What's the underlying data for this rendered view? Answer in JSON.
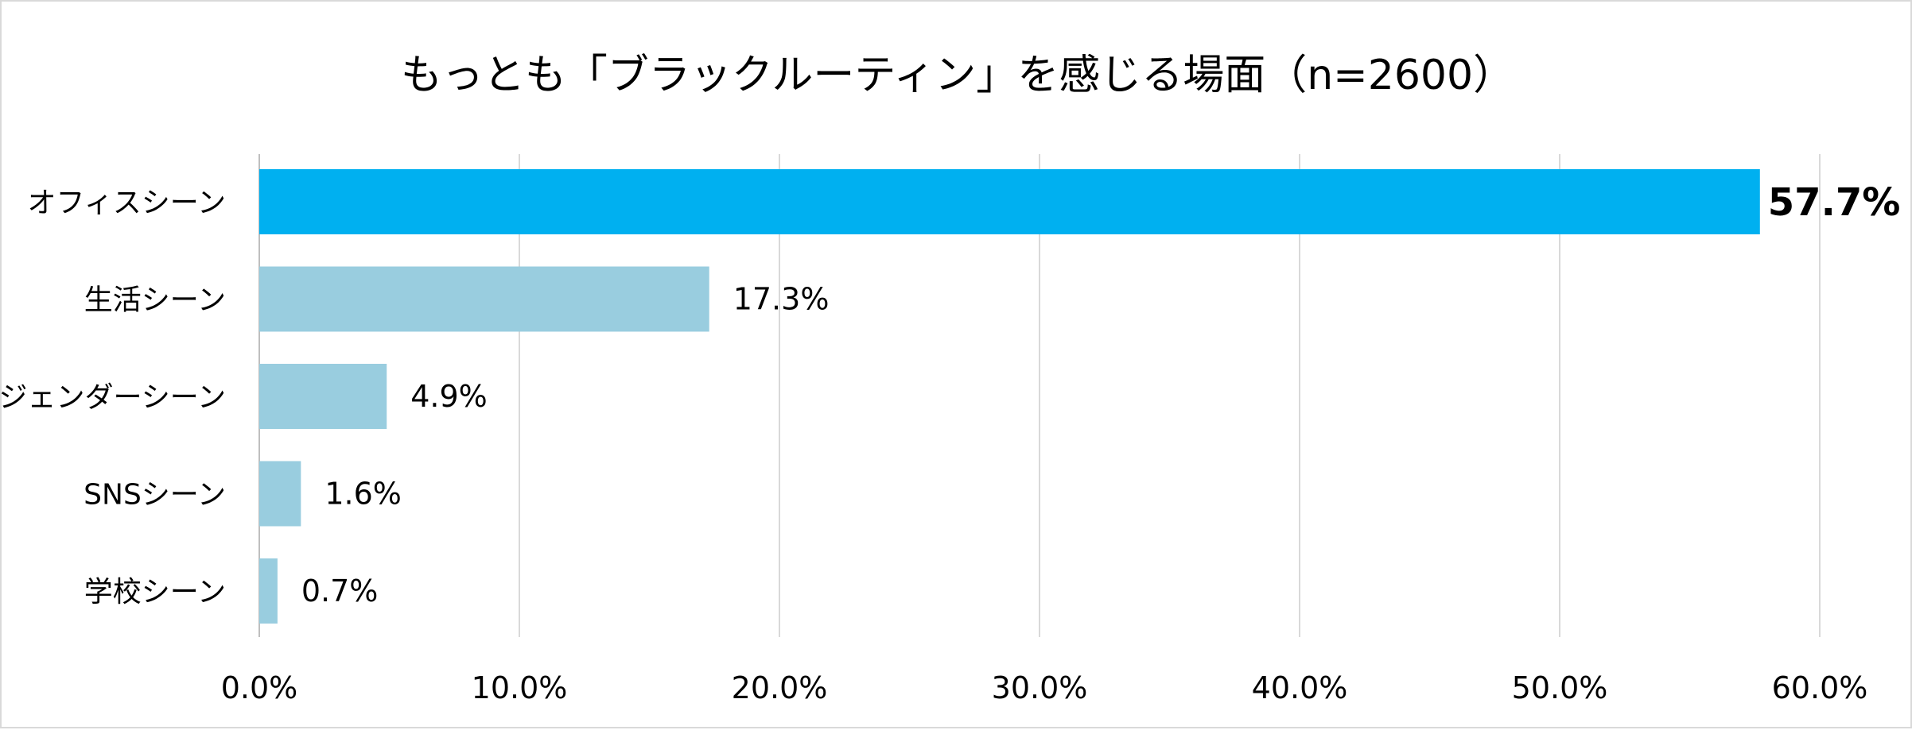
{
  "chart_data": {
    "type": "bar",
    "orientation": "horizontal",
    "title": "もっとも「ブラックルーティン」を感じる場面（n=2600）",
    "categories": [
      "オフィスシーン",
      "生活シーン",
      "ジェンダーシーン",
      "SNSシーン",
      "学校シーン"
    ],
    "values": [
      57.7,
      17.3,
      4.9,
      1.6,
      0.7
    ],
    "value_labels": [
      "57.7%",
      "17.3%",
      "4.9%",
      "1.6%",
      "0.7%"
    ],
    "highlight_index": 0,
    "xlim": [
      0,
      60
    ],
    "xticks": [
      0,
      10,
      20,
      30,
      40,
      50,
      60
    ],
    "xtick_labels": [
      "0.0%",
      "10.0%",
      "20.0%",
      "30.0%",
      "40.0%",
      "50.0%",
      "60.0%"
    ],
    "xlabel": "",
    "ylabel": "",
    "grid": "vertical",
    "legend": "none",
    "colors": {
      "highlight": "#00b0f0",
      "bar": "#99cddf",
      "grid": "#d9d9d9",
      "axis": "#bfbfbf",
      "frame": "#d9d9d9"
    }
  }
}
